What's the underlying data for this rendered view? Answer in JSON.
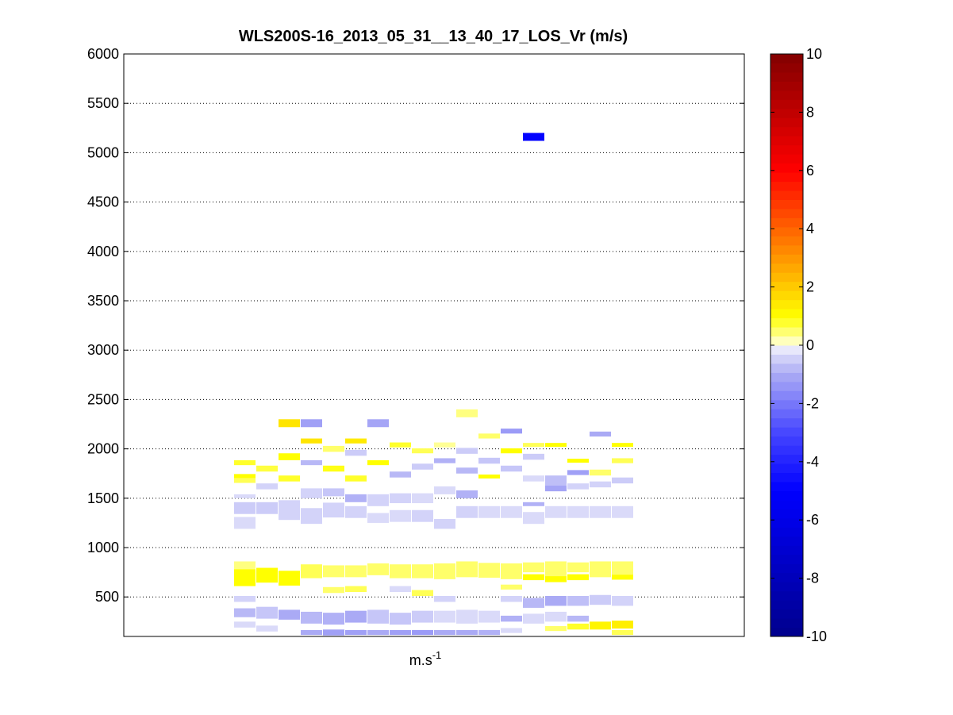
{
  "chart_data": {
    "type": "heatmap",
    "title": "WLS200S-16_2013_05_31__13_40_17_LOS_Vr (m/s)",
    "xlabel_base": "m.s",
    "xlabel_exp": "-1",
    "ylabel": "",
    "ylim": [
      100,
      6000
    ],
    "yticks": [
      500,
      1000,
      1500,
      2000,
      2500,
      3000,
      3500,
      4000,
      4500,
      5000,
      5500,
      6000
    ],
    "grid": "y-dotted",
    "colorbar": {
      "clim": [
        -10,
        10
      ],
      "ticks": [
        -10,
        -8,
        -6,
        -4,
        -2,
        0,
        2,
        4,
        6,
        8,
        10
      ],
      "colormap": "blue-white-yellow-red"
    },
    "cells": [
      {
        "col": 0,
        "z": 0.8,
        "h": 1860,
        "bh": 50
      },
      {
        "col": 0,
        "z": 1.0,
        "h": 1720,
        "bh": 50
      },
      {
        "col": 0,
        "z": 0.6,
        "h": 1680,
        "bh": 50
      },
      {
        "col": 0,
        "z": -0.3,
        "h": 1520,
        "bh": 40
      },
      {
        "col": 0,
        "z": -0.5,
        "h": 1400,
        "bh": 120
      },
      {
        "col": 0,
        "z": -0.3,
        "h": 1250,
        "bh": 120
      },
      {
        "col": 0,
        "z": 1.0,
        "h": 700,
        "bh": 180
      },
      {
        "col": 0,
        "z": 0.4,
        "h": 820,
        "bh": 80
      },
      {
        "col": 0,
        "z": -0.4,
        "h": 480,
        "bh": 60
      },
      {
        "col": 0,
        "z": -0.8,
        "h": 340,
        "bh": 90
      },
      {
        "col": 0,
        "z": -0.3,
        "h": 220,
        "bh": 60
      },
      {
        "col": 1,
        "z": 0.7,
        "h": 1800,
        "bh": 60
      },
      {
        "col": 1,
        "z": -0.4,
        "h": 1620,
        "bh": 60
      },
      {
        "col": 1,
        "z": -0.5,
        "h": 1400,
        "bh": 120
      },
      {
        "col": 1,
        "z": 1.0,
        "h": 720,
        "bh": 150
      },
      {
        "col": 1,
        "z": -0.6,
        "h": 340,
        "bh": 120
      },
      {
        "col": 1,
        "z": -0.3,
        "h": 180,
        "bh": 60
      },
      {
        "col": 2,
        "z": 1.5,
        "h": 2260,
        "bh": 80
      },
      {
        "col": 2,
        "z": 1.0,
        "h": 1920,
        "bh": 70
      },
      {
        "col": 2,
        "z": 0.8,
        "h": 1700,
        "bh": 60
      },
      {
        "col": 2,
        "z": -0.4,
        "h": 1380,
        "bh": 200
      },
      {
        "col": 2,
        "z": 1.0,
        "h": 690,
        "bh": 150
      },
      {
        "col": 2,
        "z": -1.0,
        "h": 320,
        "bh": 100
      },
      {
        "col": 3,
        "z": -1.2,
        "h": 2260,
        "bh": 80
      },
      {
        "col": 3,
        "z": 1.5,
        "h": 2080,
        "bh": 50
      },
      {
        "col": 3,
        "z": -0.8,
        "h": 1860,
        "bh": 50
      },
      {
        "col": 3,
        "z": -0.4,
        "h": 1550,
        "bh": 100
      },
      {
        "col": 3,
        "z": -0.4,
        "h": 1320,
        "bh": 160
      },
      {
        "col": 3,
        "z": 0.6,
        "h": 760,
        "bh": 140
      },
      {
        "col": 3,
        "z": -0.8,
        "h": 290,
        "bh": 120
      },
      {
        "col": 3,
        "z": -1.0,
        "h": 140,
        "bh": 50
      },
      {
        "col": 4,
        "z": 0.5,
        "h": 2000,
        "bh": 60
      },
      {
        "col": 4,
        "z": 0.9,
        "h": 1800,
        "bh": 60
      },
      {
        "col": 4,
        "z": -0.6,
        "h": 1560,
        "bh": 80
      },
      {
        "col": 4,
        "z": -0.4,
        "h": 1380,
        "bh": 150
      },
      {
        "col": 4,
        "z": 0.5,
        "h": 760,
        "bh": 120
      },
      {
        "col": 4,
        "z": 0.5,
        "h": 570,
        "bh": 60
      },
      {
        "col": 4,
        "z": -0.9,
        "h": 280,
        "bh": 120
      },
      {
        "col": 4,
        "z": -1.2,
        "h": 140,
        "bh": 60
      },
      {
        "col": 5,
        "z": 1.4,
        "h": 2080,
        "bh": 50
      },
      {
        "col": 5,
        "z": -0.5,
        "h": 1960,
        "bh": 60
      },
      {
        "col": 5,
        "z": 0.8,
        "h": 1700,
        "bh": 60
      },
      {
        "col": 5,
        "z": -0.9,
        "h": 1500,
        "bh": 80
      },
      {
        "col": 5,
        "z": -0.4,
        "h": 1360,
        "bh": 120
      },
      {
        "col": 5,
        "z": 0.5,
        "h": 760,
        "bh": 120
      },
      {
        "col": 5,
        "z": 0.6,
        "h": 580,
        "bh": 60
      },
      {
        "col": 5,
        "z": -1.0,
        "h": 300,
        "bh": 120
      },
      {
        "col": 5,
        "z": -1.2,
        "h": 140,
        "bh": 50
      },
      {
        "col": 6,
        "z": -1.1,
        "h": 2260,
        "bh": 80
      },
      {
        "col": 6,
        "z": 1.0,
        "h": 1860,
        "bh": 50
      },
      {
        "col": 6,
        "z": -0.4,
        "h": 1480,
        "bh": 120
      },
      {
        "col": 6,
        "z": -0.3,
        "h": 1300,
        "bh": 100
      },
      {
        "col": 6,
        "z": 0.5,
        "h": 780,
        "bh": 120
      },
      {
        "col": 6,
        "z": -0.6,
        "h": 300,
        "bh": 140
      },
      {
        "col": 6,
        "z": -1.0,
        "h": 140,
        "bh": 50
      },
      {
        "col": 7,
        "z": 0.8,
        "h": 2040,
        "bh": 50
      },
      {
        "col": 7,
        "z": -0.8,
        "h": 1740,
        "bh": 60
      },
      {
        "col": 7,
        "z": -0.4,
        "h": 1500,
        "bh": 100
      },
      {
        "col": 7,
        "z": -0.3,
        "h": 1320,
        "bh": 120
      },
      {
        "col": 7,
        "z": 0.5,
        "h": 760,
        "bh": 140
      },
      {
        "col": 7,
        "z": -0.3,
        "h": 580,
        "bh": 60
      },
      {
        "col": 7,
        "z": -0.6,
        "h": 280,
        "bh": 120
      },
      {
        "col": 7,
        "z": -1.2,
        "h": 140,
        "bh": 50
      },
      {
        "col": 8,
        "z": 0.6,
        "h": 1980,
        "bh": 50
      },
      {
        "col": 8,
        "z": -0.5,
        "h": 1820,
        "bh": 60
      },
      {
        "col": 8,
        "z": -0.3,
        "h": 1500,
        "bh": 100
      },
      {
        "col": 8,
        "z": -0.4,
        "h": 1320,
        "bh": 120
      },
      {
        "col": 8,
        "z": 0.5,
        "h": 760,
        "bh": 140
      },
      {
        "col": 8,
        "z": 0.6,
        "h": 540,
        "bh": 60
      },
      {
        "col": 8,
        "z": -0.5,
        "h": 300,
        "bh": 120
      },
      {
        "col": 8,
        "z": -1.3,
        "h": 140,
        "bh": 50
      },
      {
        "col": 9,
        "z": 0.3,
        "h": 2040,
        "bh": 50
      },
      {
        "col": 9,
        "z": -0.9,
        "h": 1880,
        "bh": 50
      },
      {
        "col": 9,
        "z": -0.3,
        "h": 1580,
        "bh": 80
      },
      {
        "col": 9,
        "z": -0.4,
        "h": 1240,
        "bh": 100
      },
      {
        "col": 9,
        "z": 0.5,
        "h": 760,
        "bh": 160
      },
      {
        "col": 9,
        "z": -0.4,
        "h": 480,
        "bh": 60
      },
      {
        "col": 9,
        "z": -0.3,
        "h": 300,
        "bh": 120
      },
      {
        "col": 9,
        "z": -1.0,
        "h": 140,
        "bh": 50
      },
      {
        "col": 10,
        "z": 0.4,
        "h": 2360,
        "bh": 80
      },
      {
        "col": 10,
        "z": -0.5,
        "h": 1980,
        "bh": 60
      },
      {
        "col": 10,
        "z": -0.8,
        "h": 1780,
        "bh": 60
      },
      {
        "col": 10,
        "z": -0.9,
        "h": 1540,
        "bh": 80
      },
      {
        "col": 10,
        "z": -0.4,
        "h": 1360,
        "bh": 120
      },
      {
        "col": 10,
        "z": 0.5,
        "h": 780,
        "bh": 160
      },
      {
        "col": 10,
        "z": -0.3,
        "h": 300,
        "bh": 140
      },
      {
        "col": 10,
        "z": -1.0,
        "h": 140,
        "bh": 50
      },
      {
        "col": 11,
        "z": 0.5,
        "h": 2130,
        "bh": 50
      },
      {
        "col": 11,
        "z": -0.6,
        "h": 1880,
        "bh": 60
      },
      {
        "col": 11,
        "z": 1.0,
        "h": 1720,
        "bh": 40
      },
      {
        "col": 11,
        "z": -0.3,
        "h": 1360,
        "bh": 120
      },
      {
        "col": 11,
        "z": 0.5,
        "h": 770,
        "bh": 150
      },
      {
        "col": 11,
        "z": -0.3,
        "h": 300,
        "bh": 120
      },
      {
        "col": 11,
        "z": -0.9,
        "h": 140,
        "bh": 50
      },
      {
        "col": 12,
        "z": -1.3,
        "h": 2180,
        "bh": 50
      },
      {
        "col": 12,
        "z": 1.0,
        "h": 1980,
        "bh": 50
      },
      {
        "col": 12,
        "z": -0.6,
        "h": 1800,
        "bh": 60
      },
      {
        "col": 12,
        "z": -0.3,
        "h": 1360,
        "bh": 120
      },
      {
        "col": 12,
        "z": 0.5,
        "h": 760,
        "bh": 160
      },
      {
        "col": 12,
        "z": 0.5,
        "h": 600,
        "bh": 50
      },
      {
        "col": 12,
        "z": -0.4,
        "h": 480,
        "bh": 60
      },
      {
        "col": 12,
        "z": -0.9,
        "h": 280,
        "bh": 60
      },
      {
        "col": 12,
        "z": -0.3,
        "h": 160,
        "bh": 50
      },
      {
        "col": 13,
        "z": -4.9,
        "h": 5160,
        "bh": 80
      },
      {
        "col": 13,
        "z": 0.6,
        "h": 2040,
        "bh": 40
      },
      {
        "col": 13,
        "z": -0.5,
        "h": 1920,
        "bh": 60
      },
      {
        "col": 13,
        "z": -0.3,
        "h": 1700,
        "bh": 60
      },
      {
        "col": 13,
        "z": -0.9,
        "h": 1440,
        "bh": 40
      },
      {
        "col": 13,
        "z": -0.3,
        "h": 1300,
        "bh": 120
      },
      {
        "col": 13,
        "z": 1.0,
        "h": 700,
        "bh": 60
      },
      {
        "col": 13,
        "z": 0.5,
        "h": 800,
        "bh": 100
      },
      {
        "col": 13,
        "z": -0.8,
        "h": 440,
        "bh": 100
      },
      {
        "col": 13,
        "z": -0.3,
        "h": 280,
        "bh": 100
      },
      {
        "col": 14,
        "z": 1.0,
        "h": 2040,
        "bh": 40
      },
      {
        "col": 14,
        "z": -0.7,
        "h": 1680,
        "bh": 100
      },
      {
        "col": 14,
        "z": -1.1,
        "h": 1600,
        "bh": 60
      },
      {
        "col": 14,
        "z": -0.3,
        "h": 1360,
        "bh": 120
      },
      {
        "col": 14,
        "z": 0.5,
        "h": 780,
        "bh": 160
      },
      {
        "col": 14,
        "z": 1.0,
        "h": 680,
        "bh": 60
      },
      {
        "col": 14,
        "z": -1.0,
        "h": 460,
        "bh": 100
      },
      {
        "col": 14,
        "z": -0.3,
        "h": 300,
        "bh": 100
      },
      {
        "col": 14,
        "z": 0.5,
        "h": 180,
        "bh": 50
      },
      {
        "col": 15,
        "z": 1.0,
        "h": 1880,
        "bh": 40
      },
      {
        "col": 15,
        "z": -1.2,
        "h": 1760,
        "bh": 50
      },
      {
        "col": 15,
        "z": -0.4,
        "h": 1620,
        "bh": 60
      },
      {
        "col": 15,
        "z": -0.3,
        "h": 1360,
        "bh": 120
      },
      {
        "col": 15,
        "z": 1.0,
        "h": 700,
        "bh": 60
      },
      {
        "col": 15,
        "z": 0.5,
        "h": 800,
        "bh": 100
      },
      {
        "col": 15,
        "z": -0.7,
        "h": 460,
        "bh": 100
      },
      {
        "col": 15,
        "z": -0.8,
        "h": 280,
        "bh": 60
      },
      {
        "col": 15,
        "z": 0.8,
        "h": 200,
        "bh": 60
      },
      {
        "col": 16,
        "z": -1.0,
        "h": 2150,
        "bh": 50
      },
      {
        "col": 16,
        "z": 0.5,
        "h": 1760,
        "bh": 60
      },
      {
        "col": 16,
        "z": -0.4,
        "h": 1640,
        "bh": 60
      },
      {
        "col": 16,
        "z": -0.3,
        "h": 1360,
        "bh": 120
      },
      {
        "col": 16,
        "z": 0.5,
        "h": 780,
        "bh": 160
      },
      {
        "col": 16,
        "z": -0.5,
        "h": 470,
        "bh": 100
      },
      {
        "col": 16,
        "z": 1.2,
        "h": 210,
        "bh": 80
      },
      {
        "col": 17,
        "z": 1.0,
        "h": 2040,
        "bh": 40
      },
      {
        "col": 17,
        "z": 0.6,
        "h": 1880,
        "bh": 50
      },
      {
        "col": 17,
        "z": -0.5,
        "h": 1680,
        "bh": 60
      },
      {
        "col": 17,
        "z": -0.3,
        "h": 1360,
        "bh": 120
      },
      {
        "col": 17,
        "z": 0.5,
        "h": 780,
        "bh": 160
      },
      {
        "col": 17,
        "z": 1.0,
        "h": 700,
        "bh": 50
      },
      {
        "col": 17,
        "z": -0.4,
        "h": 460,
        "bh": 100
      },
      {
        "col": 17,
        "z": 1.3,
        "h": 220,
        "bh": 80
      },
      {
        "col": 17,
        "z": 0.6,
        "h": 140,
        "bh": 50
      }
    ]
  }
}
